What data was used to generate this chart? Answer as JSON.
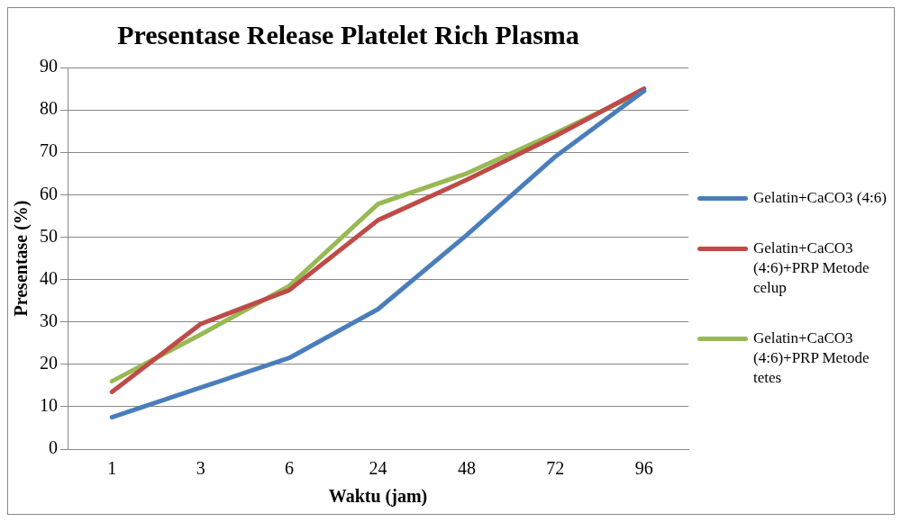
{
  "chart_data": {
    "type": "line",
    "title": "Presentase Release Platelet Rich Plasma",
    "xlabel": "Waktu (jam)",
    "ylabel": "Presentase (%)",
    "categories": [
      "1",
      "3",
      "6",
      "24",
      "48",
      "72",
      "96"
    ],
    "series": [
      {
        "name": "Gelatin+CaCO3 (4:6)",
        "color": "#4a7ebb",
        "values": [
          7.5,
          14.5,
          21.5,
          33,
          50.5,
          69,
          84.5
        ]
      },
      {
        "name": "Gelatin+CaCO3 (4:6)+PRP Metode celup",
        "color": "#be4b48",
        "values": [
          13.5,
          29.5,
          37.5,
          54,
          63.5,
          73.8,
          85
        ]
      },
      {
        "name": "Gelatin+CaCO3 (4:6)+PRP Metode tetes",
        "color": "#98b954",
        "values": [
          16,
          27,
          38.5,
          57.8,
          65,
          74.5,
          84.5
        ]
      }
    ],
    "ylim": [
      0,
      90
    ],
    "yticks": [
      0,
      10,
      20,
      30,
      40,
      50,
      60,
      70,
      80,
      90
    ],
    "grid": "y",
    "legend": "right",
    "marker": "none",
    "line_style": "solid"
  }
}
